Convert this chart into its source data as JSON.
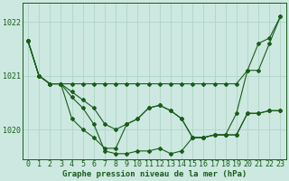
{
  "title": "Graphe pression niveau de la mer (hPa)",
  "x_ticks": [
    0,
    1,
    2,
    3,
    4,
    5,
    6,
    7,
    8,
    9,
    10,
    11,
    12,
    13,
    14,
    15,
    16,
    17,
    18,
    19,
    20,
    21,
    22,
    23
  ],
  "ylim": [
    1019.45,
    1022.35
  ],
  "yticks": [
    1020,
    1021,
    1022
  ],
  "bg_color": "#cce8e0",
  "grid_color": "#b0d4c8",
  "line_color": "#1a5c1a",
  "series": [
    [
      1021.65,
      1021.0,
      1020.85,
      1020.85,
      1020.85,
      1020.85,
      1020.85,
      1020.85,
      1020.85,
      1020.85,
      1020.85,
      1020.85,
      1020.85,
      1020.85,
      1020.85,
      1020.85,
      1020.85,
      1020.85,
      1020.85,
      1020.85,
      1021.1,
      1021.1,
      1021.6,
      1022.1
    ],
    [
      1021.65,
      1021.0,
      1020.85,
      1020.85,
      1020.7,
      1020.55,
      1020.4,
      1020.1,
      1020.0,
      1020.1,
      1020.2,
      1020.4,
      1020.45,
      1020.35,
      1020.2,
      1019.85,
      1019.85,
      1019.9,
      1019.9,
      1020.3,
      1021.1,
      1021.6,
      1021.7,
      1022.1
    ],
    [
      1021.65,
      1021.0,
      1020.85,
      1020.85,
      1020.2,
      1020.0,
      1019.85,
      1019.65,
      1019.65,
      1020.1,
      1020.2,
      1020.4,
      1020.45,
      1020.35,
      1020.2,
      1019.85,
      1019.85,
      1019.9,
      1019.9,
      1019.9,
      1020.3,
      1020.3,
      1020.35,
      1020.35
    ],
    [
      1021.65,
      1021.0,
      1020.85,
      1020.85,
      1020.6,
      1020.4,
      1020.1,
      1019.6,
      1019.55,
      1019.55,
      1019.6,
      1019.6,
      1019.65,
      1019.55,
      1019.6,
      1019.85,
      1019.85,
      1019.9,
      1019.9,
      1019.9,
      1020.3,
      1020.3,
      1020.35,
      1020.35
    ]
  ],
  "marker": "D",
  "markersize": 2.0,
  "linewidth": 0.8,
  "tick_fontsize": 6,
  "title_fontsize": 6.5
}
